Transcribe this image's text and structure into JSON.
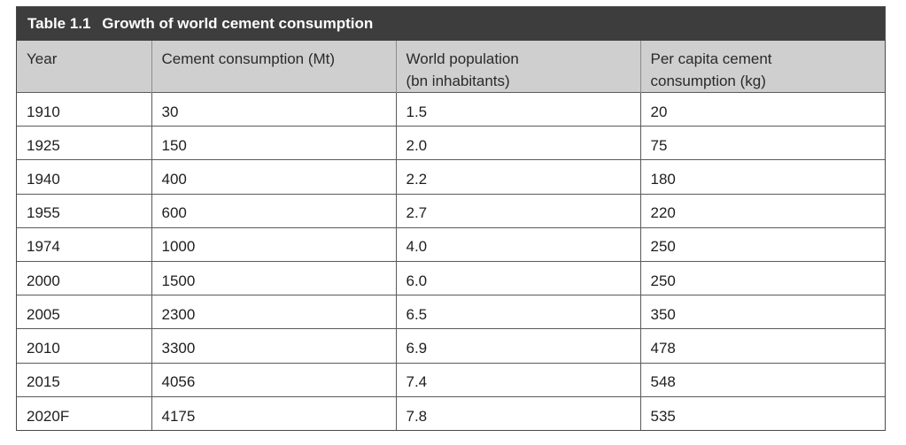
{
  "table": {
    "caption_number": "Table 1.1",
    "caption_title": "Growth of world cement consumption",
    "headers": [
      [
        "Year"
      ],
      [
        "Cement consumption (Mt)"
      ],
      [
        "World population",
        "(bn inhabitants)"
      ],
      [
        "Per capita cement",
        "consumption (kg)"
      ]
    ],
    "rows": [
      [
        "1910",
        "30",
        "1.5",
        "20"
      ],
      [
        "1925",
        "150",
        "2.0",
        "75"
      ],
      [
        "1940",
        "400",
        "2.2",
        "180"
      ],
      [
        "1955",
        "600",
        "2.7",
        "220"
      ],
      [
        "1974",
        "1000",
        "4.0",
        "250"
      ],
      [
        "2000",
        "1500",
        "6.0",
        "250"
      ],
      [
        "2005",
        "2300",
        "6.5",
        "350"
      ],
      [
        "2010",
        "3300",
        "6.9",
        "478"
      ],
      [
        "2015",
        "4056",
        "7.4",
        "548"
      ],
      [
        "2020F",
        "4175",
        "7.8",
        "535"
      ]
    ]
  }
}
